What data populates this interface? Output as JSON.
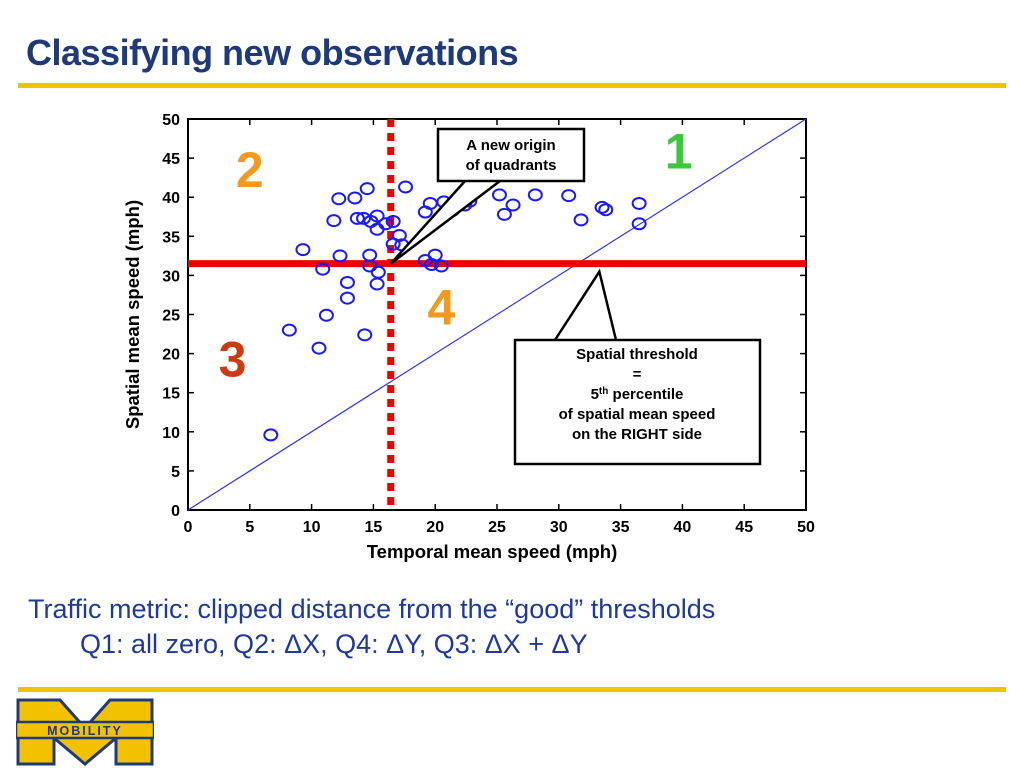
{
  "slide": {
    "title": "Classifying new observations",
    "caption_line1": "Traffic metric: clipped distance from the “good” thresholds",
    "caption_line2": "Q1: all zero, Q2: ΔX, Q4: ΔY, Q3: ΔX + ΔY",
    "logo_text": "MOBILITY",
    "accent_color": "#f2c200",
    "title_color": "#1f3a7a"
  },
  "chart_data": {
    "type": "scatter",
    "xlabel": "Temporal mean speed (mph)",
    "ylabel": "Spatial mean speed (mph)",
    "xlim": [
      0,
      50
    ],
    "ylim": [
      0,
      50
    ],
    "xticks": [
      "0",
      "5",
      "10",
      "15",
      "20",
      "25",
      "30",
      "35",
      "40",
      "45",
      "50"
    ],
    "yticks": [
      "0",
      "5",
      "10",
      "15",
      "20",
      "25",
      "30",
      "35",
      "40",
      "45",
      "50"
    ],
    "grid": false,
    "marker_color": "#1a1aff",
    "points": [
      [
        6.7,
        9.6
      ],
      [
        8.2,
        23.0
      ],
      [
        9.3,
        33.3
      ],
      [
        10.6,
        20.7
      ],
      [
        10.9,
        30.8
      ],
      [
        11.2,
        24.9
      ],
      [
        11.8,
        37.0
      ],
      [
        12.2,
        39.8
      ],
      [
        12.3,
        32.5
      ],
      [
        12.9,
        27.1
      ],
      [
        12.9,
        29.1
      ],
      [
        13.5,
        39.9
      ],
      [
        13.7,
        37.3
      ],
      [
        14.2,
        37.3
      ],
      [
        14.3,
        22.4
      ],
      [
        14.5,
        41.1
      ],
      [
        14.7,
        32.6
      ],
      [
        14.7,
        31.2
      ],
      [
        14.8,
        36.9
      ],
      [
        15.3,
        37.6
      ],
      [
        15.3,
        35.9
      ],
      [
        15.3,
        28.9
      ],
      [
        15.4,
        30.4
      ],
      [
        16.0,
        36.6
      ],
      [
        16.6,
        36.9
      ],
      [
        16.6,
        34.0
      ],
      [
        17.1,
        35.1
      ],
      [
        17.3,
        33.9
      ],
      [
        17.6,
        41.3
      ],
      [
        19.2,
        31.9
      ],
      [
        19.2,
        38.1
      ],
      [
        19.6,
        39.2
      ],
      [
        19.7,
        31.4
      ],
      [
        20.0,
        32.6
      ],
      [
        20.5,
        31.2
      ],
      [
        20.7,
        39.4
      ],
      [
        21.4,
        38.3
      ],
      [
        22.4,
        39.0
      ],
      [
        22.8,
        39.5
      ],
      [
        25.2,
        40.3
      ],
      [
        25.6,
        37.8
      ],
      [
        26.3,
        39.0
      ],
      [
        28.1,
        40.3
      ],
      [
        30.8,
        40.2
      ],
      [
        31.8,
        37.1
      ],
      [
        33.5,
        38.7
      ],
      [
        33.8,
        38.4
      ],
      [
        36.5,
        39.2
      ],
      [
        36.5,
        36.6
      ]
    ],
    "vertical_threshold": 16.4,
    "horizontal_threshold": 31.5,
    "diagonal": [
      [
        0,
        0
      ],
      [
        50,
        50
      ]
    ],
    "quadrant_labels": [
      {
        "text": "1",
        "x": 39.7,
        "y": 43.7,
        "color": "#3cc83c"
      },
      {
        "text": "2",
        "x": 5.0,
        "y": 41.3,
        "color": "#f29a1e"
      },
      {
        "text": "3",
        "x": 3.6,
        "y": 17.1,
        "color": "#cc3a12"
      },
      {
        "text": "4",
        "x": 20.5,
        "y": 23.7,
        "color": "#f29a1e"
      }
    ],
    "annotations": [
      {
        "lines": [
          "A new origin",
          "of quadrants"
        ],
        "target": [
          16.4,
          31.5
        ]
      },
      {
        "lines": [
          "Spatial threshold",
          "=",
          "5th percentile",
          "of spatial mean speed",
          "on the RIGHT side"
        ],
        "target": [
          31.5,
          31.5
        ]
      }
    ]
  }
}
